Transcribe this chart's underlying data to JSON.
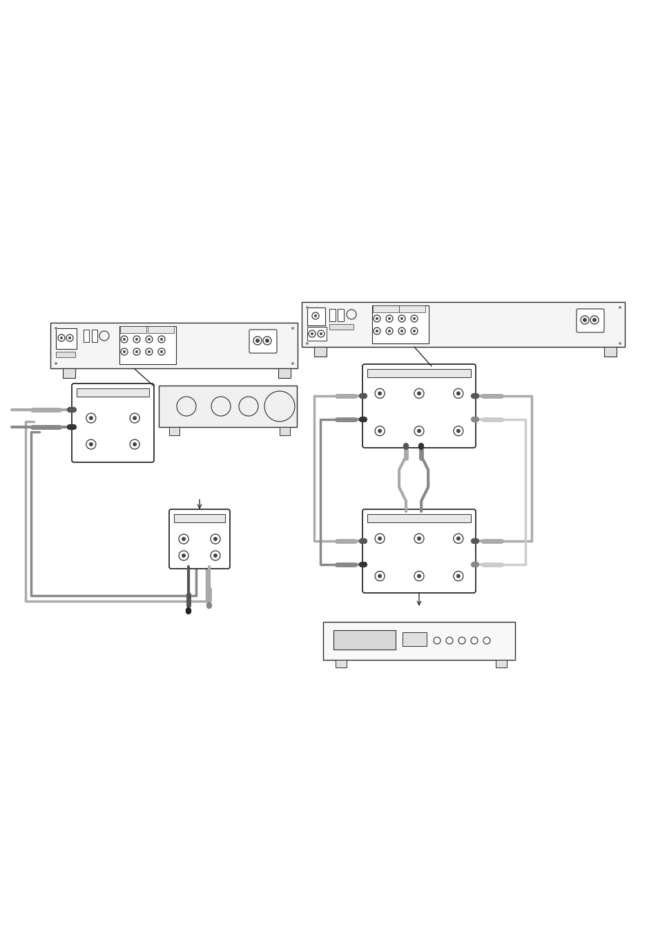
{
  "background_color": "#ffffff",
  "lc": "#2a2a2a",
  "fig_width": 9.54,
  "fig_height": 13.56,
  "dpi": 100
}
